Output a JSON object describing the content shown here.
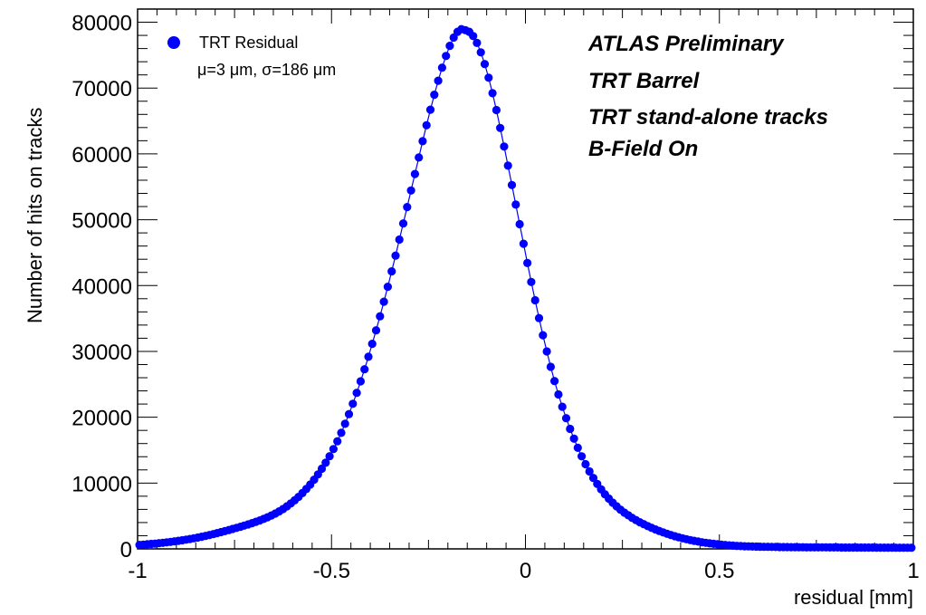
{
  "chart_data": {
    "type": "scatter",
    "xlabel": "residual [mm]",
    "ylabel": "Number of hits on tracks",
    "xlim": [
      -1,
      1
    ],
    "ylim": [
      0,
      82000
    ],
    "x_ticks": [
      "-1",
      "-0.5",
      "0",
      "0.5",
      "1"
    ],
    "y_ticks": [
      "0",
      "10000",
      "20000",
      "30000",
      "40000",
      "50000",
      "60000",
      "70000",
      "80000"
    ],
    "series": [
      {
        "name": "TRT Residual",
        "subtitle": "μ=3 μm, σ=186 μm",
        "color": "#0000ff",
        "marker": "circle",
        "binning": {
          "start": -1.0,
          "end": 1.0,
          "bins": 200
        },
        "values": [
          600,
          650,
          700,
          750,
          800,
          860,
          920,
          990,
          1060,
          1140,
          1220,
          1310,
          1400,
          1500,
          1610,
          1720,
          1840,
          1970,
          2100,
          2240,
          2390,
          2540,
          2700,
          2860,
          3020,
          3190,
          3360,
          3540,
          3720,
          3910,
          4110,
          4320,
          4550,
          4800,
          5070,
          5370,
          5700,
          6060,
          6460,
          6900,
          7380,
          7900,
          8470,
          9090,
          9770,
          10510,
          11310,
          12170,
          13090,
          14080,
          15160,
          16340,
          17620,
          19000,
          20470,
          22040,
          23700,
          25450,
          27280,
          29180,
          31150,
          33200,
          35330,
          37540,
          39820,
          42160,
          44550,
          46980,
          49440,
          51930,
          54440,
          56950,
          59450,
          61920,
          64350,
          66710,
          68980,
          71120,
          73100,
          74880,
          76420,
          77670,
          78540,
          78950,
          78800,
          78550,
          77900,
          76850,
          75420,
          73650,
          71570,
          69220,
          66660,
          63940,
          61110,
          58210,
          55270,
          52300,
          49320,
          46350,
          43420,
          40550,
          37760,
          35060,
          32460,
          29990,
          27660,
          25490,
          23460,
          21590,
          19850,
          18230,
          16740,
          15350,
          14060,
          12870,
          11770,
          10770,
          9860,
          9040,
          8300,
          7630,
          7020,
          6460,
          5960,
          5510,
          5100,
          4720,
          4370,
          4050,
          3750,
          3470,
          3210,
          2960,
          2730,
          2510,
          2300,
          2110,
          1930,
          1760,
          1610,
          1470,
          1340,
          1220,
          1110,
          1010,
          920,
          840,
          770,
          700,
          640,
          590,
          540,
          500,
          460,
          430,
          400,
          380,
          360,
          340,
          330,
          320,
          310,
          300,
          290,
          280,
          270,
          270,
          260,
          260,
          250,
          250,
          240,
          240,
          240,
          230,
          230,
          230,
          220,
          220,
          220,
          210,
          210,
          210,
          210,
          200,
          200,
          200,
          200,
          200,
          190,
          190,
          190,
          190,
          190,
          180,
          180,
          180,
          180,
          180
        ]
      }
    ],
    "legend_position": "top-left",
    "grid": false
  },
  "annotations": {
    "atlas": "ATLAS Preliminary",
    "detector": "TRT Barrel",
    "tracks": "TRT stand-alone tracks",
    "field": "B-Field On"
  },
  "legend": {
    "entry": "TRT Residual",
    "stats": "μ=3 μm, σ=186 μm"
  }
}
